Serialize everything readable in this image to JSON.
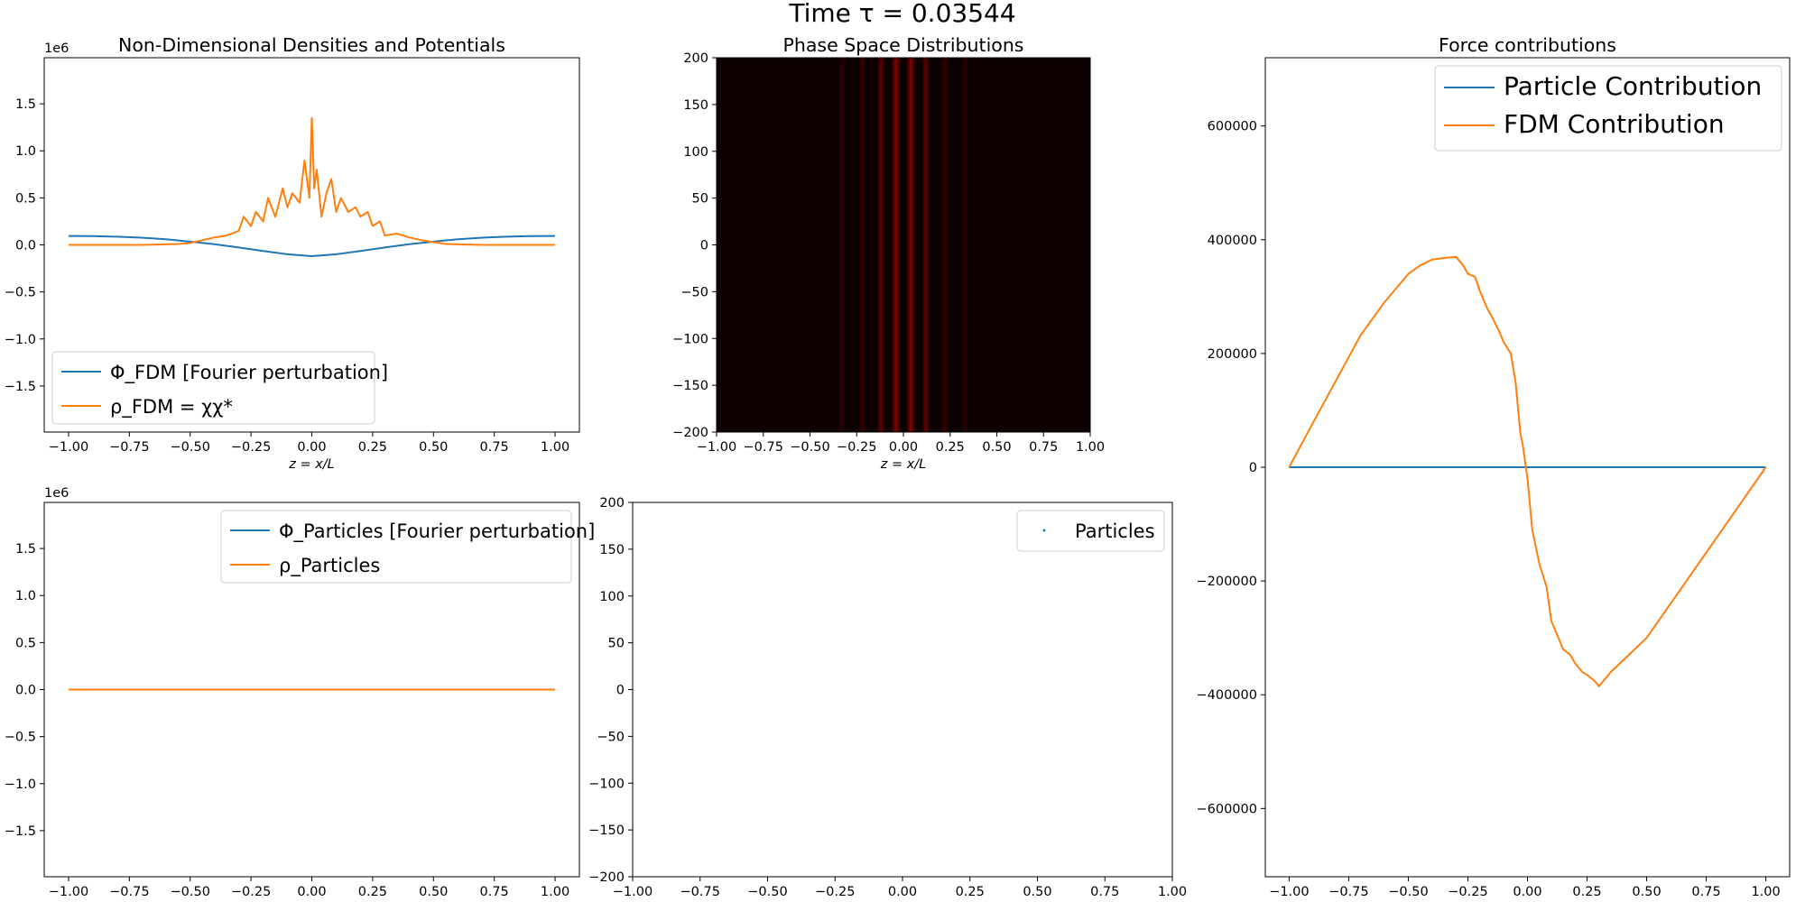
{
  "figure": {
    "suptitle": "Time τ = 0.03544"
  },
  "chart_data": [
    {
      "id": "densities-fdm",
      "type": "line",
      "title": "Non-Dimensional Densities and Potentials",
      "xlabel": "z = x/L",
      "ylabel": "",
      "y_offset_label": "1e6",
      "xlim": [
        -1.1,
        1.1
      ],
      "ylim": [
        -1.99,
        1.99
      ],
      "xticks": [
        -1.0,
        -0.75,
        -0.5,
        -0.25,
        0.0,
        0.25,
        0.5,
        0.75,
        1.0
      ],
      "xtick_labels": [
        "−1.00",
        "−0.75",
        "−0.50",
        "−0.25",
        "0.00",
        "0.25",
        "0.50",
        "0.75",
        "1.00"
      ],
      "yticks": [
        1.5,
        1.0,
        0.5,
        0.0,
        -0.5,
        -1.0,
        -1.5
      ],
      "ytick_labels": [
        "1.5",
        "1.0",
        "0.5",
        "0.0",
        "−0.5",
        "−1.0",
        "−1.5"
      ],
      "legend": {
        "placement": "lower-left"
      },
      "series": [
        {
          "name": "Φ_FDM [Fourier perturbation]",
          "color": "#1f77b4",
          "x": [
            -1.0,
            -0.9,
            -0.8,
            -0.7,
            -0.6,
            -0.5,
            -0.4,
            -0.3,
            -0.2,
            -0.1,
            0.0,
            0.1,
            0.2,
            0.3,
            0.4,
            0.5,
            0.6,
            0.7,
            0.8,
            0.9,
            1.0
          ],
          "y": [
            0.095,
            0.093,
            0.087,
            0.077,
            0.059,
            0.035,
            0.008,
            -0.028,
            -0.065,
            -0.1,
            -0.12,
            -0.1,
            -0.065,
            -0.028,
            0.008,
            0.035,
            0.059,
            0.077,
            0.087,
            0.093,
            0.095
          ]
        },
        {
          "name": "ρ_FDM = χχ*",
          "color": "#ff7f0e",
          "x": [
            -1.0,
            -0.7,
            -0.55,
            -0.5,
            -0.45,
            -0.4,
            -0.35,
            -0.3,
            -0.28,
            -0.25,
            -0.23,
            -0.2,
            -0.18,
            -0.15,
            -0.12,
            -0.1,
            -0.08,
            -0.05,
            -0.03,
            -0.01,
            0.0,
            0.01,
            0.02,
            0.04,
            0.06,
            0.08,
            0.1,
            0.12,
            0.15,
            0.18,
            0.2,
            0.23,
            0.25,
            0.28,
            0.3,
            0.35,
            0.4,
            0.45,
            0.5,
            0.55,
            0.7,
            1.0
          ],
          "y": [
            0.0,
            0.0,
            0.01,
            0.02,
            0.05,
            0.08,
            0.1,
            0.15,
            0.3,
            0.2,
            0.35,
            0.25,
            0.5,
            0.3,
            0.6,
            0.4,
            0.55,
            0.45,
            0.9,
            0.5,
            1.35,
            0.6,
            0.8,
            0.3,
            0.55,
            0.7,
            0.35,
            0.5,
            0.35,
            0.4,
            0.3,
            0.35,
            0.2,
            0.25,
            0.1,
            0.12,
            0.08,
            0.05,
            0.03,
            0.01,
            0.0,
            0.0
          ]
        }
      ]
    },
    {
      "id": "phase-space-fdm",
      "type": "heatmap",
      "title": "Phase Space Distributions",
      "xlabel": "z = x/L",
      "ylabel": "",
      "xlim": [
        -1.0,
        1.0
      ],
      "ylim": [
        -200,
        200
      ],
      "xticks": [
        -1.0,
        -0.75,
        -0.5,
        -0.25,
        0.0,
        0.25,
        0.5,
        0.75,
        1.0
      ],
      "xtick_labels": [
        "−1.00",
        "−0.75",
        "−0.50",
        "−0.25",
        "0.00",
        "0.25",
        "0.50",
        "0.75",
        "1.00"
      ],
      "yticks": [
        200,
        150,
        100,
        50,
        0,
        -50,
        -100,
        -150,
        -200
      ],
      "ytick_labels": [
        "200",
        "150",
        "100",
        "50",
        "0",
        "−50",
        "−100",
        "−150",
        "−200"
      ],
      "background_color": "#0d0000",
      "bands": [
        {
          "x": -0.12,
          "width": 0.04,
          "intensity": 0.45
        },
        {
          "x": -0.04,
          "width": 0.05,
          "intensity": 0.6
        },
        {
          "x": 0.04,
          "width": 0.05,
          "intensity": 0.6
        },
        {
          "x": 0.12,
          "width": 0.04,
          "intensity": 0.45
        },
        {
          "x": -0.22,
          "width": 0.04,
          "intensity": 0.25
        },
        {
          "x": 0.22,
          "width": 0.04,
          "intensity": 0.25
        },
        {
          "x": -0.33,
          "width": 0.04,
          "intensity": 0.12
        },
        {
          "x": 0.33,
          "width": 0.04,
          "intensity": 0.12
        }
      ]
    },
    {
      "id": "densities-particles",
      "type": "line",
      "title": "",
      "xlabel": "",
      "ylabel": "",
      "y_offset_label": "1e6",
      "xlim": [
        -1.1,
        1.1
      ],
      "ylim": [
        -1.99,
        1.99
      ],
      "xticks": [
        -1.0,
        -0.75,
        -0.5,
        -0.25,
        0.0,
        0.25,
        0.5,
        0.75,
        1.0
      ],
      "xtick_labels": [
        "−1.00",
        "−0.75",
        "−0.50",
        "−0.25",
        "0.00",
        "0.25",
        "0.50",
        "0.75",
        "1.00"
      ],
      "yticks": [
        1.5,
        1.0,
        0.5,
        0.0,
        -0.5,
        -1.0,
        -1.5
      ],
      "ytick_labels": [
        "1.5",
        "1.0",
        "0.5",
        "0.0",
        "−0.5",
        "−1.0",
        "−1.5"
      ],
      "legend": {
        "placement": "upper-right"
      },
      "series": [
        {
          "name": "Φ_Particles [Fourier perturbation]",
          "color": "#1f77b4",
          "x": [
            -1.0,
            1.0
          ],
          "y": [
            0.0,
            0.0
          ]
        },
        {
          "name": "ρ_Particles",
          "color": "#ff7f0e",
          "x": [
            -1.0,
            1.0
          ],
          "y": [
            0.0,
            0.0
          ]
        }
      ]
    },
    {
      "id": "phase-space-particles",
      "type": "scatter",
      "title": "",
      "xlabel": "",
      "ylabel": "",
      "xlim": [
        -1.0,
        1.0
      ],
      "ylim": [
        -200,
        200
      ],
      "xticks": [
        -1.0,
        -0.75,
        -0.5,
        -0.25,
        0.0,
        0.25,
        0.5,
        0.75,
        1.0
      ],
      "xtick_labels": [
        "−1.00",
        "−0.75",
        "−0.50",
        "−0.25",
        "0.00",
        "0.25",
        "0.50",
        "0.75",
        "1.00"
      ],
      "yticks": [
        200,
        150,
        100,
        50,
        0,
        -50,
        -100,
        -150,
        -200
      ],
      "ytick_labels": [
        "200",
        "150",
        "100",
        "50",
        "0",
        "−50",
        "−100",
        "−150",
        "−200"
      ],
      "legend": {
        "placement": "upper-right"
      },
      "series": [
        {
          "name": "Particles",
          "color": "#1f77b4",
          "x": [],
          "y": []
        }
      ]
    },
    {
      "id": "force-contributions",
      "type": "line",
      "title": "Force contributions",
      "xlabel": "",
      "ylabel": "",
      "xlim": [
        -1.1,
        1.1
      ],
      "ylim": [
        -720000,
        720000
      ],
      "xticks": [
        -1.0,
        -0.75,
        -0.5,
        -0.25,
        0.0,
        0.25,
        0.5,
        0.75,
        1.0
      ],
      "xtick_labels": [
        "−1.00",
        "−0.75",
        "−0.50",
        "−0.25",
        "0.00",
        "0.25",
        "0.50",
        "0.75",
        "1.00"
      ],
      "yticks": [
        600000,
        400000,
        200000,
        0,
        -200000,
        -400000,
        -600000
      ],
      "ytick_labels": [
        "600000",
        "400000",
        "200000",
        "0",
        "−200000",
        "−400000",
        "−600000"
      ],
      "legend": {
        "placement": "upper-right"
      },
      "series": [
        {
          "name": "Particle Contribution",
          "color": "#1f77b4",
          "x": [
            -1.0,
            1.0
          ],
          "y": [
            0,
            0
          ]
        },
        {
          "name": "FDM Contribution",
          "color": "#ff7f0e",
          "x": [
            -1.0,
            -0.9,
            -0.8,
            -0.7,
            -0.6,
            -0.5,
            -0.45,
            -0.4,
            -0.35,
            -0.3,
            -0.27,
            -0.25,
            -0.22,
            -0.2,
            -0.17,
            -0.15,
            -0.12,
            -0.1,
            -0.07,
            -0.05,
            -0.03,
            -0.02,
            0.0,
            0.02,
            0.05,
            0.08,
            0.1,
            0.13,
            0.15,
            0.18,
            0.2,
            0.23,
            0.25,
            0.28,
            0.3,
            0.35,
            0.4,
            0.5,
            0.6,
            0.7,
            0.8,
            0.9,
            1.0
          ],
          "y": [
            0,
            78000,
            155000,
            232000,
            290000,
            340000,
            355000,
            365000,
            368000,
            370000,
            355000,
            340000,
            335000,
            310000,
            280000,
            265000,
            240000,
            220000,
            200000,
            150000,
            60000,
            40000,
            -20000,
            -110000,
            -170000,
            -210000,
            -270000,
            -300000,
            -320000,
            -330000,
            -345000,
            -360000,
            -365000,
            -375000,
            -385000,
            -360000,
            -340000,
            -300000,
            -240000,
            -180000,
            -120000,
            -60000,
            0
          ]
        }
      ]
    }
  ]
}
